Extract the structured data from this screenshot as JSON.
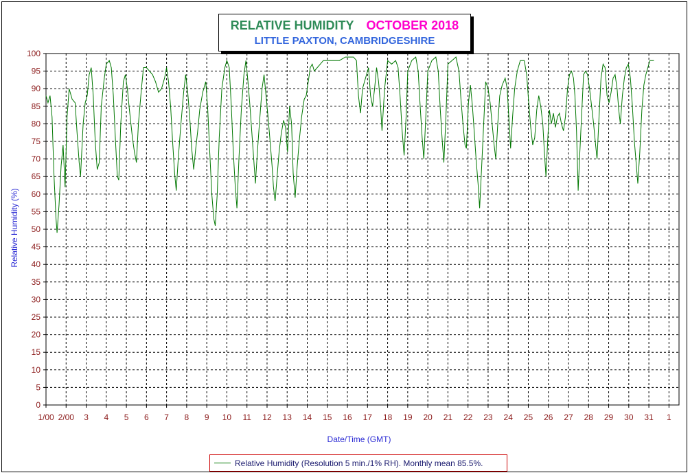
{
  "chart_data": {
    "type": "line",
    "title": "RELATIVE HUMIDITY",
    "title_month": "OCTOBER 2018",
    "subtitle": "LITTLE PAXTON, CAMBRIDGESHIRE",
    "xlabel": "Date/Time (GMT)",
    "ylabel": "Relative Humidity (%)",
    "ylim": [
      0,
      100
    ],
    "y_ticks": [
      0,
      5,
      10,
      15,
      20,
      25,
      30,
      35,
      40,
      45,
      50,
      55,
      60,
      65,
      70,
      75,
      80,
      85,
      90,
      95,
      100
    ],
    "x_range_days": [
      1,
      32.5
    ],
    "x_tick_labels": [
      "1/00",
      "2/00",
      "3",
      "4",
      "5",
      "6",
      "7",
      "8",
      "9",
      "10",
      "11",
      "12",
      "13",
      "14",
      "15",
      "16",
      "17",
      "18",
      "19",
      "20",
      "21",
      "22",
      "23",
      "24",
      "25",
      "26",
      "27",
      "28",
      "29",
      "30",
      "31",
      "1"
    ],
    "x_tick_days": [
      1,
      2,
      3,
      4,
      5,
      6,
      7,
      8,
      9,
      10,
      11,
      12,
      13,
      14,
      15,
      16,
      17,
      18,
      19,
      20,
      21,
      22,
      23,
      24,
      25,
      26,
      27,
      28,
      29,
      30,
      31,
      32
    ],
    "grid": true,
    "legend_position": "bottom",
    "series": [
      {
        "name": "Relative Humidity (Resolution 5 min./1% RH). Monthly mean 85.5%.",
        "color": "#007700",
        "points": [
          [
            1.0,
            88
          ],
          [
            1.1,
            86
          ],
          [
            1.2,
            88
          ],
          [
            1.3,
            82
          ],
          [
            1.4,
            65
          ],
          [
            1.5,
            53
          ],
          [
            1.55,
            49
          ],
          [
            1.65,
            57
          ],
          [
            1.75,
            68
          ],
          [
            1.85,
            74
          ],
          [
            1.95,
            62
          ],
          [
            2.05,
            82
          ],
          [
            2.15,
            90
          ],
          [
            2.3,
            87
          ],
          [
            2.45,
            86
          ],
          [
            2.55,
            77
          ],
          [
            2.65,
            69
          ],
          [
            2.72,
            65
          ],
          [
            2.85,
            80
          ],
          [
            2.95,
            86
          ],
          [
            3.05,
            88
          ],
          [
            3.15,
            94
          ],
          [
            3.25,
            96
          ],
          [
            3.35,
            88
          ],
          [
            3.45,
            75
          ],
          [
            3.55,
            67
          ],
          [
            3.65,
            69
          ],
          [
            3.75,
            85
          ],
          [
            3.9,
            93
          ],
          [
            4.0,
            97
          ],
          [
            4.15,
            98
          ],
          [
            4.25,
            96
          ],
          [
            4.35,
            88
          ],
          [
            4.45,
            76
          ],
          [
            4.55,
            65
          ],
          [
            4.62,
            64
          ],
          [
            4.72,
            80
          ],
          [
            4.85,
            92
          ],
          [
            4.95,
            94
          ],
          [
            5.05,
            90
          ],
          [
            5.15,
            84
          ],
          [
            5.3,
            76
          ],
          [
            5.4,
            72
          ],
          [
            5.5,
            69
          ],
          [
            5.6,
            80
          ],
          [
            5.75,
            90
          ],
          [
            5.85,
            96
          ],
          [
            6.0,
            96
          ],
          [
            6.15,
            95
          ],
          [
            6.3,
            94
          ],
          [
            6.45,
            92
          ],
          [
            6.6,
            89
          ],
          [
            6.75,
            90
          ],
          [
            6.9,
            93
          ],
          [
            7.0,
            96
          ],
          [
            7.1,
            92
          ],
          [
            7.2,
            85
          ],
          [
            7.3,
            75
          ],
          [
            7.4,
            66
          ],
          [
            7.48,
            61
          ],
          [
            7.58,
            70
          ],
          [
            7.7,
            79
          ],
          [
            7.85,
            89
          ],
          [
            7.95,
            94
          ],
          [
            8.05,
            89
          ],
          [
            8.15,
            82
          ],
          [
            8.25,
            73
          ],
          [
            8.35,
            67
          ],
          [
            8.45,
            73
          ],
          [
            8.55,
            78
          ],
          [
            8.65,
            84
          ],
          [
            8.8,
            89
          ],
          [
            8.95,
            92
          ],
          [
            9.05,
            84
          ],
          [
            9.15,
            72
          ],
          [
            9.25,
            60
          ],
          [
            9.35,
            53
          ],
          [
            9.42,
            51
          ],
          [
            9.52,
            60
          ],
          [
            9.62,
            76
          ],
          [
            9.75,
            90
          ],
          [
            9.9,
            96
          ],
          [
            10.0,
            98
          ],
          [
            10.12,
            96
          ],
          [
            10.22,
            85
          ],
          [
            10.32,
            72
          ],
          [
            10.42,
            62
          ],
          [
            10.5,
            56
          ],
          [
            10.6,
            70
          ],
          [
            10.72,
            84
          ],
          [
            10.85,
            94
          ],
          [
            10.95,
            98
          ],
          [
            11.05,
            92
          ],
          [
            11.15,
            85
          ],
          [
            11.25,
            77
          ],
          [
            11.35,
            69
          ],
          [
            11.42,
            63
          ],
          [
            11.52,
            72
          ],
          [
            11.62,
            80
          ],
          [
            11.75,
            90
          ],
          [
            11.85,
            94
          ],
          [
            11.95,
            88
          ],
          [
            12.05,
            82
          ],
          [
            12.15,
            75
          ],
          [
            12.25,
            68
          ],
          [
            12.32,
            62
          ],
          [
            12.4,
            58
          ],
          [
            12.5,
            65
          ],
          [
            12.6,
            72
          ],
          [
            12.7,
            77
          ],
          [
            12.82,
            81
          ],
          [
            12.92,
            79
          ],
          [
            13.02,
            72
          ],
          [
            13.12,
            85
          ],
          [
            13.22,
            80
          ],
          [
            13.3,
            66
          ],
          [
            13.4,
            59
          ],
          [
            13.5,
            68
          ],
          [
            13.6,
            75
          ],
          [
            13.72,
            82
          ],
          [
            13.85,
            87
          ],
          [
            13.95,
            88
          ],
          [
            14.05,
            92
          ],
          [
            14.15,
            96
          ],
          [
            14.25,
            97
          ],
          [
            14.35,
            95
          ],
          [
            14.5,
            96
          ],
          [
            14.65,
            97
          ],
          [
            14.8,
            98
          ],
          [
            15.0,
            98
          ],
          [
            15.3,
            98
          ],
          [
            15.6,
            98
          ],
          [
            15.9,
            99
          ],
          [
            16.1,
            99
          ],
          [
            16.3,
            99
          ],
          [
            16.45,
            98
          ],
          [
            16.55,
            88
          ],
          [
            16.65,
            83
          ],
          [
            16.75,
            90
          ],
          [
            16.9,
            93
          ],
          [
            17.05,
            96
          ],
          [
            17.15,
            88
          ],
          [
            17.25,
            85
          ],
          [
            17.35,
            90
          ],
          [
            17.45,
            96
          ],
          [
            17.55,
            92
          ],
          [
            17.65,
            85
          ],
          [
            17.72,
            78
          ],
          [
            17.85,
            90
          ],
          [
            18.0,
            98
          ],
          [
            18.2,
            97
          ],
          [
            18.4,
            98
          ],
          [
            18.52,
            96
          ],
          [
            18.62,
            88
          ],
          [
            18.72,
            78
          ],
          [
            18.82,
            71
          ],
          [
            18.92,
            82
          ],
          [
            19.0,
            95
          ],
          [
            19.2,
            98
          ],
          [
            19.4,
            99
          ],
          [
            19.52,
            95
          ],
          [
            19.62,
            85
          ],
          [
            19.72,
            76
          ],
          [
            19.8,
            70
          ],
          [
            19.9,
            82
          ],
          [
            20.0,
            95
          ],
          [
            20.2,
            98
          ],
          [
            20.4,
            99
          ],
          [
            20.52,
            95
          ],
          [
            20.62,
            84
          ],
          [
            20.72,
            75
          ],
          [
            20.8,
            69
          ],
          [
            20.9,
            82
          ],
          [
            21.0,
            97
          ],
          [
            21.2,
            98
          ],
          [
            21.4,
            99
          ],
          [
            21.55,
            95
          ],
          [
            21.65,
            87
          ],
          [
            21.75,
            80
          ],
          [
            21.85,
            74
          ],
          [
            21.92,
            73
          ],
          [
            22.02,
            86
          ],
          [
            22.12,
            91
          ],
          [
            22.22,
            85
          ],
          [
            22.32,
            77
          ],
          [
            22.4,
            70
          ],
          [
            22.5,
            63
          ],
          [
            22.58,
            56
          ],
          [
            22.68,
            68
          ],
          [
            22.78,
            80
          ],
          [
            22.88,
            92
          ],
          [
            23.0,
            90
          ],
          [
            23.1,
            86
          ],
          [
            23.2,
            80
          ],
          [
            23.3,
            74
          ],
          [
            23.38,
            70
          ],
          [
            23.48,
            80
          ],
          [
            23.58,
            88
          ],
          [
            23.7,
            91
          ],
          [
            23.85,
            93
          ],
          [
            23.95,
            90
          ],
          [
            24.05,
            80
          ],
          [
            24.12,
            73
          ],
          [
            24.22,
            82
          ],
          [
            24.32,
            90
          ],
          [
            24.45,
            95
          ],
          [
            24.6,
            98
          ],
          [
            24.8,
            98
          ],
          [
            24.92,
            94
          ],
          [
            25.02,
            86
          ],
          [
            25.12,
            79
          ],
          [
            25.22,
            74
          ],
          [
            25.32,
            76
          ],
          [
            25.42,
            84
          ],
          [
            25.52,
            88
          ],
          [
            25.62,
            85
          ],
          [
            25.72,
            80
          ],
          [
            25.8,
            72
          ],
          [
            25.88,
            65
          ],
          [
            25.98,
            77
          ],
          [
            26.05,
            84
          ],
          [
            26.15,
            80
          ],
          [
            26.25,
            83
          ],
          [
            26.35,
            79
          ],
          [
            26.45,
            82
          ],
          [
            26.55,
            83
          ],
          [
            26.65,
            80
          ],
          [
            26.75,
            78
          ],
          [
            26.85,
            82
          ],
          [
            26.95,
            90
          ],
          [
            27.05,
            94
          ],
          [
            27.15,
            95
          ],
          [
            27.25,
            93
          ],
          [
            27.32,
            88
          ],
          [
            27.4,
            78
          ],
          [
            27.48,
            61
          ],
          [
            27.55,
            70
          ],
          [
            27.65,
            82
          ],
          [
            27.75,
            94
          ],
          [
            27.85,
            95
          ],
          [
            27.95,
            94
          ],
          [
            28.05,
            90
          ],
          [
            28.15,
            85
          ],
          [
            28.25,
            80
          ],
          [
            28.35,
            74
          ],
          [
            28.42,
            70
          ],
          [
            28.52,
            82
          ],
          [
            28.62,
            93
          ],
          [
            28.72,
            97
          ],
          [
            28.82,
            96
          ],
          [
            28.92,
            88
          ],
          [
            29.02,
            86
          ],
          [
            29.12,
            89
          ],
          [
            29.22,
            93
          ],
          [
            29.32,
            94
          ],
          [
            29.42,
            90
          ],
          [
            29.5,
            84
          ],
          [
            29.58,
            80
          ],
          [
            29.68,
            88
          ],
          [
            29.78,
            93
          ],
          [
            29.88,
            96
          ],
          [
            29.98,
            97
          ],
          [
            30.08,
            93
          ],
          [
            30.18,
            85
          ],
          [
            30.28,
            75
          ],
          [
            30.38,
            68
          ],
          [
            30.45,
            63
          ],
          [
            30.55,
            72
          ],
          [
            30.65,
            84
          ],
          [
            30.75,
            91
          ],
          [
            30.85,
            94
          ],
          [
            30.95,
            96
          ],
          [
            31.05,
            98
          ],
          [
            31.15,
            98
          ],
          [
            31.25,
            98
          ]
        ]
      }
    ]
  },
  "legend": {
    "label": "Relative Humidity (Resolution 5 min./1% RH). Monthly mean 85.5%."
  }
}
